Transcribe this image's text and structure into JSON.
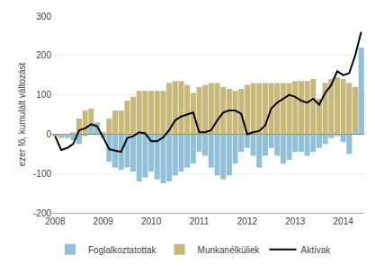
{
  "chart_data": {
    "type": "bar",
    "ylabel": "ezer fő, kumulált változást",
    "categories": [
      "2008",
      null,
      null,
      null,
      null,
      null,
      null,
      null,
      "2009",
      null,
      null,
      null,
      null,
      null,
      null,
      null,
      "2010",
      null,
      null,
      null,
      null,
      null,
      null,
      null,
      "2011",
      null,
      null,
      null,
      null,
      null,
      null,
      null,
      "2012",
      null,
      null,
      null,
      null,
      null,
      null,
      null,
      "2013",
      null,
      null,
      null,
      null,
      null,
      null,
      null,
      "2014",
      null,
      null,
      null
    ],
    "series": [
      {
        "name": "Foglalkoztatottak",
        "type": "bar",
        "color": "#92c0d8",
        "values": [
          0,
          -5,
          -10,
          -15,
          -25,
          -5,
          25,
          30,
          -10,
          -70,
          -85,
          -90,
          -85,
          -95,
          -120,
          -110,
          -95,
          -115,
          -125,
          -120,
          -105,
          -95,
          -85,
          -75,
          -45,
          -55,
          -85,
          -105,
          -115,
          -105,
          -75,
          -45,
          -35,
          -55,
          -85,
          -55,
          -35,
          -55,
          -75,
          -65,
          -45,
          -45,
          -55,
          -45,
          -35,
          -25,
          -10,
          -5,
          -20,
          -50,
          10,
          220
        ]
      },
      {
        "name": "Munkanélküliek",
        "type": "bar",
        "color": "#c8b87a",
        "values": [
          -5,
          -10,
          -5,
          5,
          40,
          60,
          65,
          5,
          5,
          40,
          60,
          60,
          85,
          95,
          110,
          110,
          110,
          110,
          110,
          130,
          135,
          135,
          125,
          105,
          120,
          125,
          130,
          130,
          120,
          115,
          110,
          115,
          125,
          130,
          130,
          130,
          130,
          130,
          130,
          130,
          135,
          135,
          135,
          140,
          90,
          130,
          140,
          145,
          140,
          130,
          120,
          115
        ]
      },
      {
        "name": "Aktívak",
        "type": "line",
        "color": "#000000",
        "values": [
          -5,
          -40,
          -35,
          -25,
          10,
          15,
          25,
          20,
          -8,
          -38,
          -42,
          -45,
          -10,
          -5,
          5,
          2,
          -18,
          -18,
          -8,
          10,
          35,
          45,
          50,
          55,
          5,
          5,
          10,
          35,
          55,
          60,
          60,
          52,
          0,
          5,
          8,
          22,
          65,
          80,
          90,
          100,
          95,
          85,
          80,
          90,
          75,
          105,
          125,
          160,
          150,
          155,
          200,
          260
        ]
      }
    ],
    "ylim": [
      -200,
      300
    ],
    "yticks": [
      -200,
      -100,
      0,
      100,
      200,
      300
    ],
    "grid": true,
    "legend": "bottom"
  }
}
